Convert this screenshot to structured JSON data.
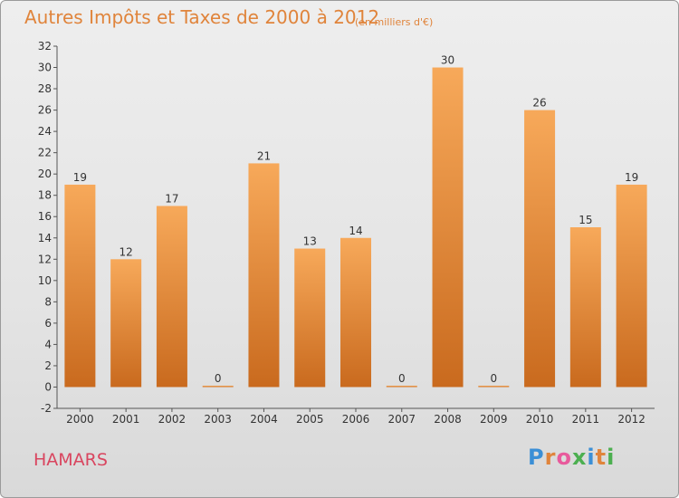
{
  "header": {
    "title": "Autres Impôts et Taxes de 2000 à 2012",
    "subtitle": "(en milliers d'€)"
  },
  "footer": {
    "town": "HAMARS",
    "logo_text": "Proxiti",
    "logo_colors": [
      "#3b8fd6",
      "#e0843b",
      "#e85a9c",
      "#4caf50",
      "#3b8fd6",
      "#e0843b",
      "#4caf50"
    ]
  },
  "chart_data": {
    "type": "bar",
    "categories": [
      "2000",
      "2001",
      "2002",
      "2003",
      "2004",
      "2005",
      "2006",
      "2007",
      "2008",
      "2009",
      "2010",
      "2011",
      "2012"
    ],
    "values": [
      19,
      12,
      17,
      0,
      21,
      13,
      14,
      0,
      30,
      0,
      26,
      15,
      19
    ],
    "data_labels": [
      "19",
      "12",
      "17",
      "0",
      "21",
      "13",
      "14",
      "0",
      "30",
      "0",
      "26",
      "15",
      "19"
    ],
    "ylim": [
      -2,
      32
    ],
    "yticks": [
      -2,
      0,
      2,
      4,
      6,
      8,
      10,
      12,
      14,
      16,
      18,
      20,
      22,
      24,
      26,
      28,
      30,
      32
    ],
    "grid": false,
    "bar_color": "#f0943c",
    "bar_color_light": "#f7a95a",
    "bar_color_dark": "#c96a1e"
  }
}
